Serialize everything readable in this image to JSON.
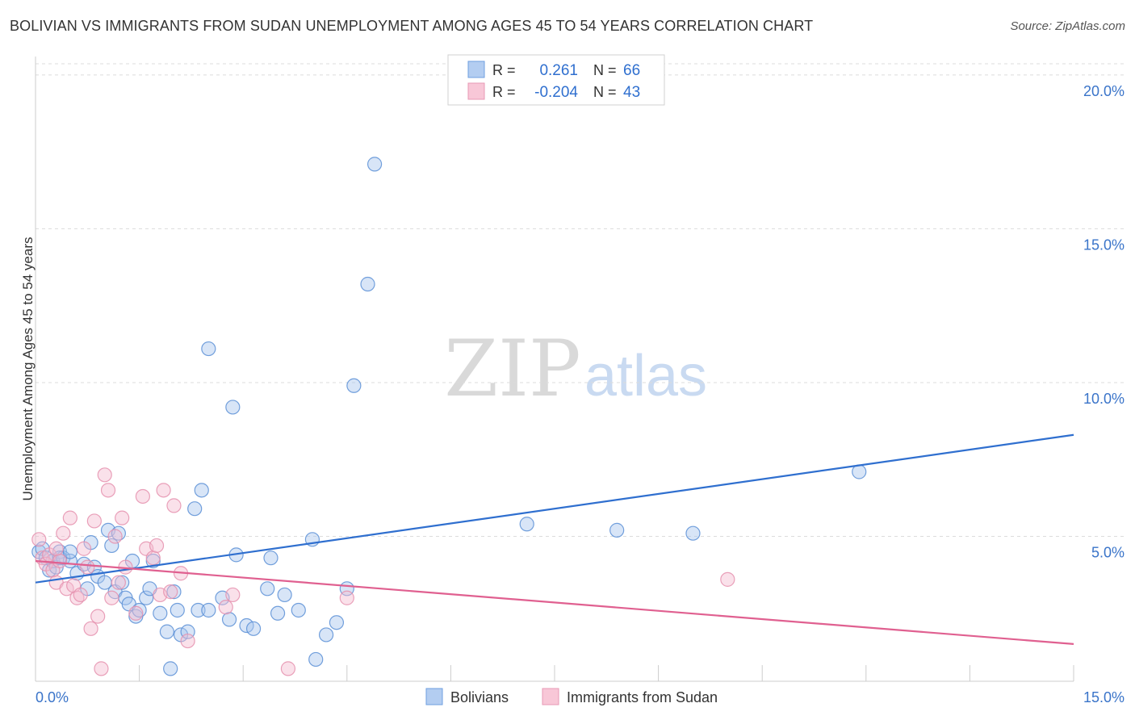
{
  "chart_data": {
    "type": "scatter",
    "title": "BOLIVIAN VS IMMIGRANTS FROM SUDAN UNEMPLOYMENT AMONG AGES 45 TO 54 YEARS CORRELATION CHART",
    "source": "Source: ZipAtlas.com",
    "xlabel": "",
    "ylabel": "Unemployment Among Ages 45 to 54 years",
    "xlim": [
      0,
      15
    ],
    "ylim": [
      0.5,
      20.6
    ],
    "x_tick_labels": {
      "min": "0.0%",
      "max": "15.0%"
    },
    "y_ticks": [
      {
        "value": 5,
        "label": "5.0%"
      },
      {
        "value": 10,
        "label": "10.0%"
      },
      {
        "value": 15,
        "label": "15.0%"
      },
      {
        "value": 20,
        "label": "20.0%"
      }
    ],
    "watermark": {
      "part1": "ZIP",
      "part2": "atlas"
    },
    "legend": {
      "entries": [
        {
          "r_label": "R =",
          "r_value": "0.261",
          "n_label": "N =",
          "n_value": "66"
        },
        {
          "r_label": "R =",
          "r_value": "-0.204",
          "n_label": "N =",
          "n_value": "43"
        }
      ]
    },
    "series": [
      {
        "name": "Bolivians",
        "color": "#5b8fd6",
        "fill": "#a9c6ee",
        "line_color": "#2f6fcf",
        "trend": {
          "x0": 0,
          "y0": 3.5,
          "x1": 15,
          "y1": 8.3
        },
        "points": [
          [
            0.05,
            4.5
          ],
          [
            0.1,
            4.6
          ],
          [
            0.15,
            4.3
          ],
          [
            0.2,
            3.9
          ],
          [
            0.25,
            4.2
          ],
          [
            0.3,
            4.0
          ],
          [
            0.35,
            4.5
          ],
          [
            0.4,
            4.3
          ],
          [
            0.5,
            4.2
          ],
          [
            0.6,
            3.8
          ],
          [
            0.7,
            4.1
          ],
          [
            0.75,
            3.3
          ],
          [
            0.8,
            4.8
          ],
          [
            0.85,
            4.0
          ],
          [
            0.9,
            3.7
          ],
          [
            1.0,
            3.5
          ],
          [
            1.05,
            5.2
          ],
          [
            1.1,
            4.7
          ],
          [
            1.15,
            3.2
          ],
          [
            1.2,
            5.1
          ],
          [
            1.3,
            3.0
          ],
          [
            1.35,
            2.8
          ],
          [
            1.4,
            4.2
          ],
          [
            1.45,
            2.4
          ],
          [
            1.5,
            2.6
          ],
          [
            1.6,
            3.0
          ],
          [
            1.65,
            3.3
          ],
          [
            1.7,
            4.2
          ],
          [
            1.8,
            2.5
          ],
          [
            1.9,
            1.9
          ],
          [
            1.95,
            0.7
          ],
          [
            2.0,
            3.2
          ],
          [
            2.05,
            2.6
          ],
          [
            2.1,
            1.8
          ],
          [
            2.35,
            2.6
          ],
          [
            2.4,
            6.5
          ],
          [
            2.5,
            2.6
          ],
          [
            2.7,
            3.0
          ],
          [
            2.8,
            2.3
          ],
          [
            2.9,
            4.4
          ],
          [
            3.05,
            2.1
          ],
          [
            3.15,
            2.0
          ],
          [
            3.35,
            3.3
          ],
          [
            3.4,
            4.3
          ],
          [
            3.5,
            2.5
          ],
          [
            3.6,
            3.1
          ],
          [
            3.8,
            2.6
          ],
          [
            4.0,
            4.9
          ],
          [
            4.05,
            1.0
          ],
          [
            4.2,
            1.8
          ],
          [
            4.35,
            2.2
          ],
          [
            4.5,
            3.3
          ],
          [
            2.5,
            11.1
          ],
          [
            2.85,
            9.2
          ],
          [
            4.6,
            9.9
          ],
          [
            4.8,
            13.2
          ],
          [
            4.9,
            17.1
          ],
          [
            7.1,
            5.4
          ],
          [
            8.4,
            5.2
          ],
          [
            9.5,
            5.1
          ],
          [
            11.9,
            7.1
          ],
          [
            0.35,
            4.3
          ],
          [
            2.3,
            5.9
          ],
          [
            2.2,
            1.9
          ],
          [
            1.25,
            3.5
          ],
          [
            0.5,
            4.5
          ]
        ]
      },
      {
        "name": "Immigrants from Sudan",
        "color": "#e590ae",
        "fill": "#f5bdd0",
        "line_color": "#e06090",
        "trend": {
          "x0": 0,
          "y0": 4.2,
          "x1": 15,
          "y1": 1.5
        },
        "points": [
          [
            0.05,
            4.9
          ],
          [
            0.1,
            4.3
          ],
          [
            0.15,
            4.1
          ],
          [
            0.2,
            4.4
          ],
          [
            0.25,
            3.9
          ],
          [
            0.3,
            3.5
          ],
          [
            0.35,
            4.2
          ],
          [
            0.4,
            5.1
          ],
          [
            0.45,
            3.3
          ],
          [
            0.5,
            5.6
          ],
          [
            0.55,
            3.4
          ],
          [
            0.6,
            3.0
          ],
          [
            0.65,
            3.1
          ],
          [
            0.7,
            4.6
          ],
          [
            0.75,
            4.0
          ],
          [
            0.8,
            2.0
          ],
          [
            0.85,
            5.5
          ],
          [
            0.9,
            2.4
          ],
          [
            0.95,
            0.7
          ],
          [
            1.0,
            7.0
          ],
          [
            1.05,
            6.5
          ],
          [
            1.1,
            3.0
          ],
          [
            1.15,
            5.0
          ],
          [
            1.2,
            3.5
          ],
          [
            1.25,
            5.6
          ],
          [
            1.3,
            4.0
          ],
          [
            1.45,
            2.5
          ],
          [
            1.55,
            6.3
          ],
          [
            1.6,
            4.6
          ],
          [
            1.7,
            4.3
          ],
          [
            1.75,
            4.7
          ],
          [
            1.8,
            3.1
          ],
          [
            1.85,
            6.5
          ],
          [
            1.95,
            3.2
          ],
          [
            2.0,
            6.0
          ],
          [
            2.1,
            3.8
          ],
          [
            2.2,
            1.6
          ],
          [
            2.75,
            2.7
          ],
          [
            2.85,
            3.1
          ],
          [
            3.65,
            0.7
          ],
          [
            4.5,
            3.0
          ],
          [
            10.0,
            3.6
          ],
          [
            0.3,
            4.6
          ]
        ]
      }
    ]
  }
}
